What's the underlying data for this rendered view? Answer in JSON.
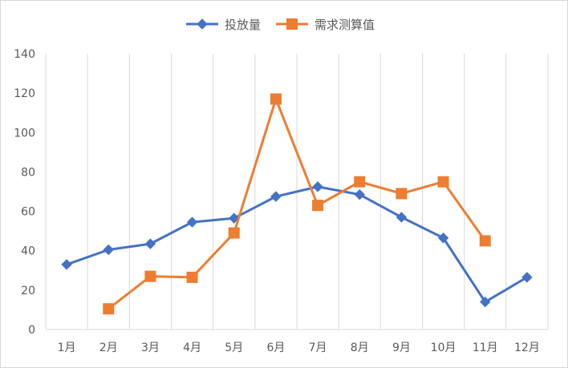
{
  "chart_data": {
    "type": "line",
    "title": "",
    "xlabel": "",
    "ylabel": "",
    "categories": [
      "1月",
      "2月",
      "3月",
      "4月",
      "5月",
      "6月",
      "7月",
      "8月",
      "9月",
      "10月",
      "11月",
      "12月"
    ],
    "ylim": [
      0,
      140
    ],
    "yticks": [
      0,
      20,
      40,
      60,
      80,
      100,
      120,
      140
    ],
    "grid": "vertical",
    "legend": "top-center",
    "series": [
      {
        "name": "投放量",
        "color": "#4472c4",
        "marker": "diamond",
        "values": [
          33,
          40.5,
          43.5,
          54.5,
          56.5,
          67.5,
          72.5,
          68.5,
          57,
          46.5,
          14,
          26.5
        ]
      },
      {
        "name": "需求测算值",
        "color": "#ed7d31",
        "marker": "square",
        "values": [
          null,
          10.5,
          27,
          26.5,
          49,
          117,
          63,
          75,
          69,
          75,
          45,
          null
        ]
      }
    ]
  }
}
